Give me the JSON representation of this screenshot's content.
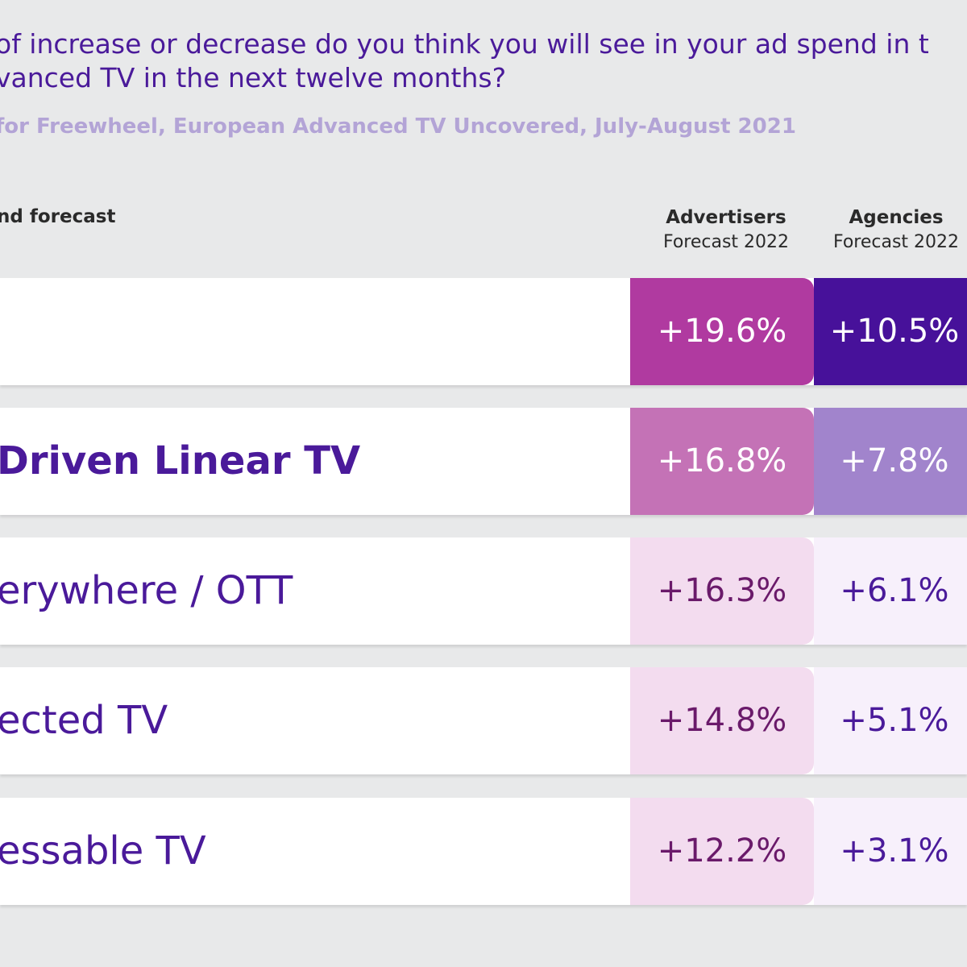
{
  "question": {
    "line1": "of increase or decrease do you think you will see in your ad spend in t",
    "line2": "vanced TV in the next twelve months?"
  },
  "source": "for Freewheel, European Advanced TV Uncovered, July-August 2021",
  "section_label": "nd forecast",
  "columns": {
    "advertisers": {
      "title": "Advertisers",
      "subtitle": "Forecast 2022"
    },
    "agencies": {
      "title": "Agencies",
      "subtitle": "Forecast 2022"
    }
  },
  "colors": {
    "text_purple": "#4a1a9a",
    "row1_adv": "#b03aa0",
    "row1_agc": "#47119a",
    "row2_adv": "#c472b6",
    "row2_agc": "#a184cc",
    "light_adv": "#f3dcef",
    "light_agc": "#f7f0fb"
  },
  "chart_data": {
    "type": "table",
    "columns": [
      "Advertisers Forecast 2022",
      "Agencies Forecast 2022"
    ],
    "rows": [
      {
        "label": "",
        "advertisers": "+19.6%",
        "agencies": "+10.5%"
      },
      {
        "label": "Driven Linear TV",
        "advertisers": "+16.8%",
        "agencies": "+7.8%"
      },
      {
        "label": "erywhere / OTT",
        "advertisers": "+16.3%",
        "agencies": "+6.1%"
      },
      {
        "label": "ected TV",
        "advertisers": "+14.8%",
        "agencies": "+5.1%"
      },
      {
        "label": "essable TV",
        "advertisers": "+12.2%",
        "agencies": "+3.1%"
      }
    ]
  }
}
